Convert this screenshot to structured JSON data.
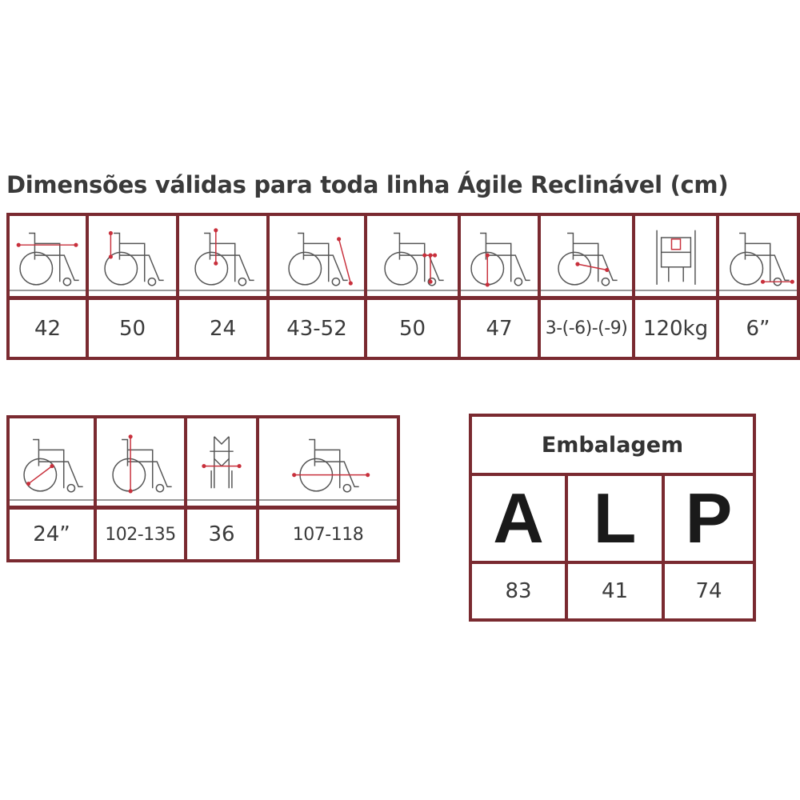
{
  "title": "Dimensões válidas para toda linha Ágile Reclinável (cm)",
  "colors": {
    "border": "#7a2a30",
    "arrow": "#c8303c",
    "drawing": "#555555"
  },
  "table1": [
    {
      "icon": "seat-width-icon",
      "value": "42"
    },
    {
      "icon": "backrest-height-icon",
      "value": "50"
    },
    {
      "icon": "armrest-height-icon",
      "value": "24"
    },
    {
      "icon": "leg-length-icon",
      "value": "43-52"
    },
    {
      "icon": "seat-height-icon",
      "value": "50"
    },
    {
      "icon": "seat-floor-height-icon",
      "value": "47"
    },
    {
      "icon": "seat-depth-icon",
      "value": "3-(-6)-(-9)"
    },
    {
      "icon": "max-weight-icon",
      "value": "120kg"
    },
    {
      "icon": "caster-wheel-icon",
      "value": "6”"
    }
  ],
  "table2": [
    {
      "icon": "rear-wheel-diameter-icon",
      "value": "24”"
    },
    {
      "icon": "total-height-icon",
      "value": "102-135"
    },
    {
      "icon": "folded-width-icon",
      "value": "36"
    },
    {
      "icon": "total-length-icon",
      "value": "107-118"
    }
  ],
  "packaging": {
    "title": "Embalagem",
    "columns": [
      {
        "letter": "A",
        "value": "83"
      },
      {
        "letter": "L",
        "value": "41"
      },
      {
        "letter": "P",
        "value": "74"
      }
    ]
  }
}
